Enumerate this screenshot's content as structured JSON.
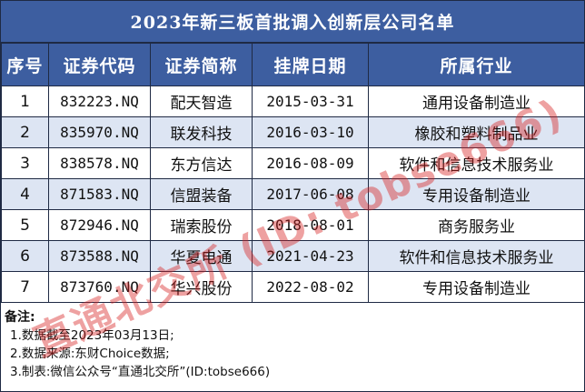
{
  "title": "2023年新三板首批调入创新层公司名单",
  "columns": [
    "序号",
    "证券代码",
    "证券简称",
    "挂牌日期",
    "所属行业"
  ],
  "rows": [
    {
      "no": "1",
      "code": "832223.NQ",
      "name": "配天智造",
      "date": "2015-03-31",
      "industry": "通用设备制造业"
    },
    {
      "no": "2",
      "code": "835970.NQ",
      "name": "联发科技",
      "date": "2016-03-10",
      "industry": "橡胶和塑料制品业"
    },
    {
      "no": "3",
      "code": "838578.NQ",
      "name": "东方信达",
      "date": "2016-08-09",
      "industry": "软件和信息技术服务业"
    },
    {
      "no": "4",
      "code": "871583.NQ",
      "name": "信盟装备",
      "date": "2017-06-08",
      "industry": "专用设备制造业"
    },
    {
      "no": "5",
      "code": "872946.NQ",
      "name": "瑞索股份",
      "date": "2018-08-01",
      "industry": "商务服务业"
    },
    {
      "no": "6",
      "code": "873588.NQ",
      "name": "华夏电通",
      "date": "2021-04-23",
      "industry": "软件和信息技术服务业"
    },
    {
      "no": "7",
      "code": "873760.NQ",
      "name": "华兴股份",
      "date": "2022-08-02",
      "industry": "专用设备制造业"
    }
  ],
  "notes": {
    "heading": "备注:",
    "lines": [
      "1.数据截至2023年03月13日;",
      "2.数据来源:东财Choice数据;",
      "3.制表:微信公众号“直通北交所”(ID:tobse666)"
    ]
  },
  "watermark": "直通北交所 (ID: tobse666)",
  "colors": {
    "header_bg": "#3d5ea0",
    "alt_row_bg": "#dde5f3",
    "watermark": "#d71e1e"
  }
}
